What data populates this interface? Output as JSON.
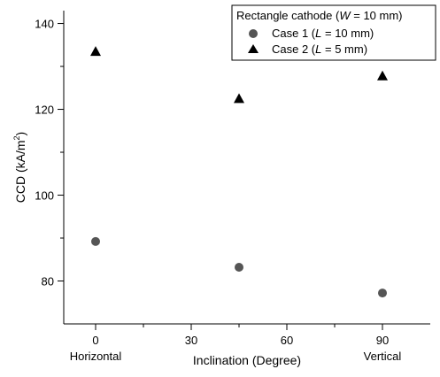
{
  "chart_data": {
    "type": "scatter",
    "xlabel": "Inclination (Degree)",
    "ylabel_main": "CCD (kA/m",
    "ylabel_sup": "2",
    "ylabel_close": ")",
    "xlim": [
      -10,
      105
    ],
    "ylim": [
      70,
      143
    ],
    "x_ticks": [
      0,
      30,
      60,
      90
    ],
    "x_tick_labels": [
      "0",
      "30",
      "60",
      "90"
    ],
    "x_minor_ticks": [
      15,
      45,
      75
    ],
    "x_sublabels": [
      {
        "x": 0,
        "label": "Horizontal"
      },
      {
        "x": 90,
        "label": "Vertical"
      }
    ],
    "y_ticks": [
      80,
      100,
      120,
      140
    ],
    "y_tick_labels": [
      "80",
      "100",
      "120",
      "140"
    ],
    "y_minor_ticks": [
      90,
      110,
      130
    ],
    "legend": {
      "title_prefix": "Rectangle cathode (",
      "title_var": "W",
      "title_suffix": " = 10 mm)",
      "placement": "top-right"
    },
    "series": [
      {
        "name_prefix": "Case 1 (",
        "name_var": "L",
        "name_suffix": " = 10 mm)",
        "marker": "circle",
        "color": "#555555",
        "x": [
          0,
          45,
          90
        ],
        "y": [
          89.2,
          83.2,
          77.2
        ]
      },
      {
        "name_prefix": "Case 2 (",
        "name_var": "L",
        "name_suffix": " = 5 mm)",
        "marker": "triangle",
        "color": "#000000",
        "x": [
          0,
          45,
          90
        ],
        "y": [
          133.5,
          122.5,
          127.8
        ]
      }
    ]
  }
}
